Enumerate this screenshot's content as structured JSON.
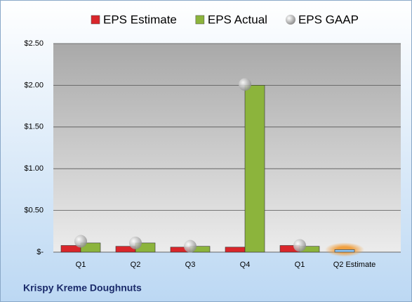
{
  "chart_data": {
    "type": "bar",
    "title": "Krispy Kreme Doughnuts",
    "categories": [
      "Q1",
      "Q2",
      "Q3",
      "Q4",
      "Q1",
      "Q2 Estimate"
    ],
    "series": [
      {
        "name": "EPS Estimate",
        "color": "#d9262b",
        "colors": [
          "#d9262b",
          "#d9262b",
          "#d9262b",
          "#d9262b",
          "#d9262b",
          "#8fc3ee"
        ],
        "values": [
          0.08,
          0.07,
          0.06,
          0.06,
          0.08,
          0.03
        ]
      },
      {
        "name": "EPS Actual",
        "color": "#8cb43c",
        "values": [
          0.11,
          0.11,
          0.07,
          2.0,
          0.07,
          null
        ]
      },
      {
        "name": "EPS GAAP",
        "type": "scatter",
        "color": "#b0b0b0",
        "values": [
          0.13,
          0.11,
          0.07,
          2.01,
          0.08,
          null
        ]
      }
    ],
    "ylim": [
      0,
      2.5
    ],
    "yticks": [
      {
        "value": 0,
        "label": "$-"
      },
      {
        "value": 0.5,
        "label": "$0.50"
      },
      {
        "value": 1,
        "label": "$1.00"
      },
      {
        "value": 1.5,
        "label": "$1.50"
      },
      {
        "value": 2,
        "label": "$2.00"
      },
      {
        "value": 2.5,
        "label": "$2.50"
      }
    ],
    "grid": true,
    "legend": "top"
  }
}
